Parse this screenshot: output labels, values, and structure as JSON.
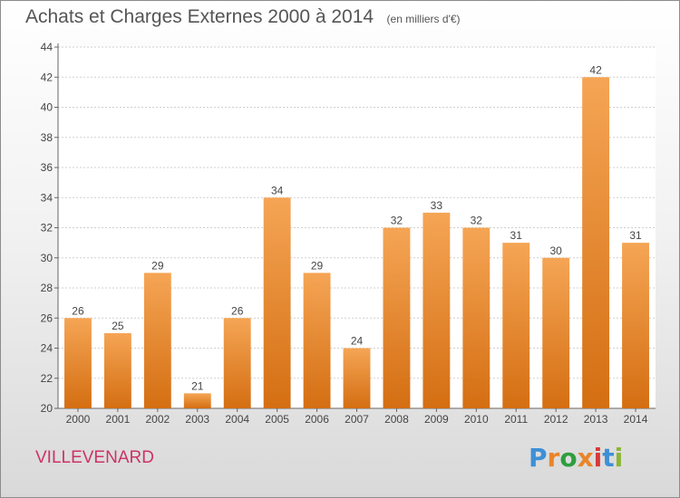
{
  "title": "Achats et Charges Externes 2000 à 2014",
  "subtitle": "(en milliers d'€)",
  "place": "VILLEVENARD",
  "brand": {
    "letters": [
      "P",
      "r",
      "o",
      "x",
      "i",
      "t",
      "i"
    ],
    "colors": [
      "#3e8fd6",
      "#e8852a",
      "#2e9e3e",
      "#e8852a",
      "#d63a3a",
      "#3e8fd6",
      "#8bb634"
    ]
  },
  "colors": {
    "bar_top": "#f5a555",
    "bar_bottom": "#d46e12",
    "title": "#555555",
    "place": "#cc3366"
  },
  "chart_data": {
    "type": "bar",
    "categories": [
      "2000",
      "2001",
      "2002",
      "2003",
      "2004",
      "2005",
      "2006",
      "2007",
      "2008",
      "2009",
      "2010",
      "2011",
      "2012",
      "2013",
      "2014"
    ],
    "values": [
      26,
      25,
      29,
      21,
      26,
      34,
      29,
      24,
      32,
      33,
      32,
      31,
      30,
      42,
      31
    ],
    "ylim": [
      20,
      44
    ],
    "yticks": [
      20,
      22,
      24,
      26,
      28,
      30,
      32,
      34,
      36,
      38,
      40,
      42,
      44
    ],
    "grid": true,
    "title": "Achats et Charges Externes 2000 à 2014",
    "xlabel": "",
    "ylabel": ""
  }
}
